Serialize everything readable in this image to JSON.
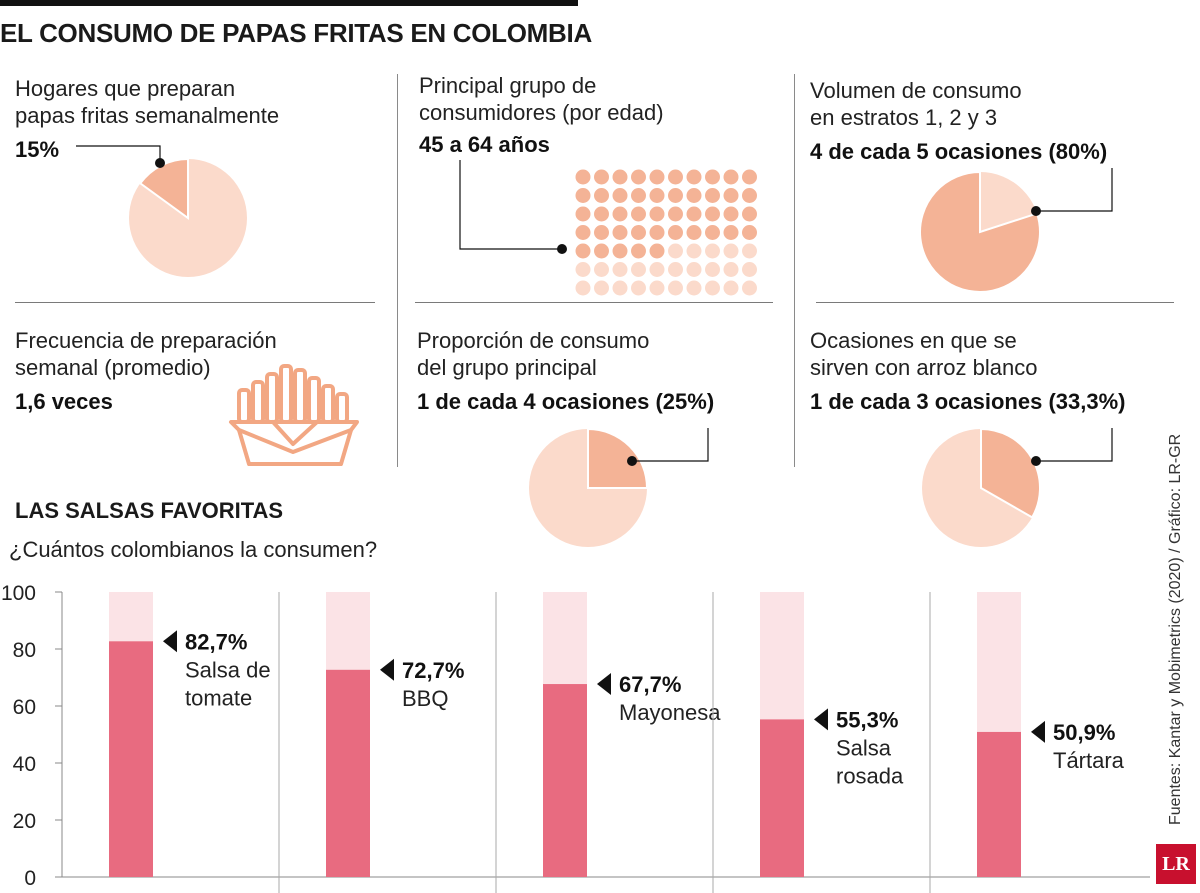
{
  "title": "EL CONSUMO DE PAPAS FRITAS EN COLOMBIA",
  "colors": {
    "pie_light": "#fbdacb",
    "pie_dark": "#f4b396",
    "bar_full": "#e86b80",
    "bar_bg": "#fbe3e6",
    "rule": "#111111"
  },
  "stats": [
    {
      "label_1": "Hogares que preparan",
      "label_2": "papas fritas semanalmente",
      "value": "15%",
      "percent": 15
    },
    {
      "label_1": "Principal grupo de",
      "label_2": "consumidores (por edad)",
      "value": "45 a 64 años",
      "dots_total": 70,
      "dots_highlight": 45
    },
    {
      "label_1": "Volumen de consumo",
      "label_2": "en estratos 1, 2 y 3",
      "value": "4 de cada 5 ocasiones (80%)",
      "percent": 80
    },
    {
      "label_1": "Frecuencia de preparación",
      "label_2": "semanal (promedio)",
      "value": "1,6 veces",
      "icon": "french-fries-icon"
    },
    {
      "label_1": "Proporción de consumo",
      "label_2": "del grupo principal",
      "value": "1 de cada 4 ocasiones (25%)",
      "percent": 25
    },
    {
      "label_1": "Ocasiones en que se",
      "label_2": "sirven con arroz blanco",
      "value": "1 de cada 3 ocasiones (33,3%)",
      "percent": 33.3
    }
  ],
  "sauces": {
    "title": "LAS SALSAS FAVORITAS",
    "question": "¿Cuántos colombianos la consumen?"
  },
  "chart_data": {
    "type": "bar",
    "title": "LAS SALSAS FAVORITAS",
    "subtitle": "¿Cuántos colombianos la consumen?",
    "categories": [
      "Salsa de tomate",
      "BBQ",
      "Mayonesa",
      "Salsa rosada",
      "Tártara"
    ],
    "label_lines": [
      [
        "Salsa de",
        "tomate"
      ],
      [
        "BBQ"
      ],
      [
        "Mayonesa"
      ],
      [
        "Salsa",
        "rosada"
      ],
      [
        "Tártara"
      ]
    ],
    "values": [
      82.7,
      72.7,
      67.7,
      55.3,
      50.9
    ],
    "value_labels": [
      "82,7%",
      "72,7%",
      "67,7%",
      "55,3%",
      "50,9%"
    ],
    "ylim": [
      0,
      100
    ],
    "yticks": [
      0,
      20,
      40,
      60,
      80,
      100
    ],
    "grid": false
  },
  "footer": {
    "source": "Fuentes: Kantar y Mobimetrics (2020) / Gráfico: LR-GR",
    "logo": "LR"
  }
}
